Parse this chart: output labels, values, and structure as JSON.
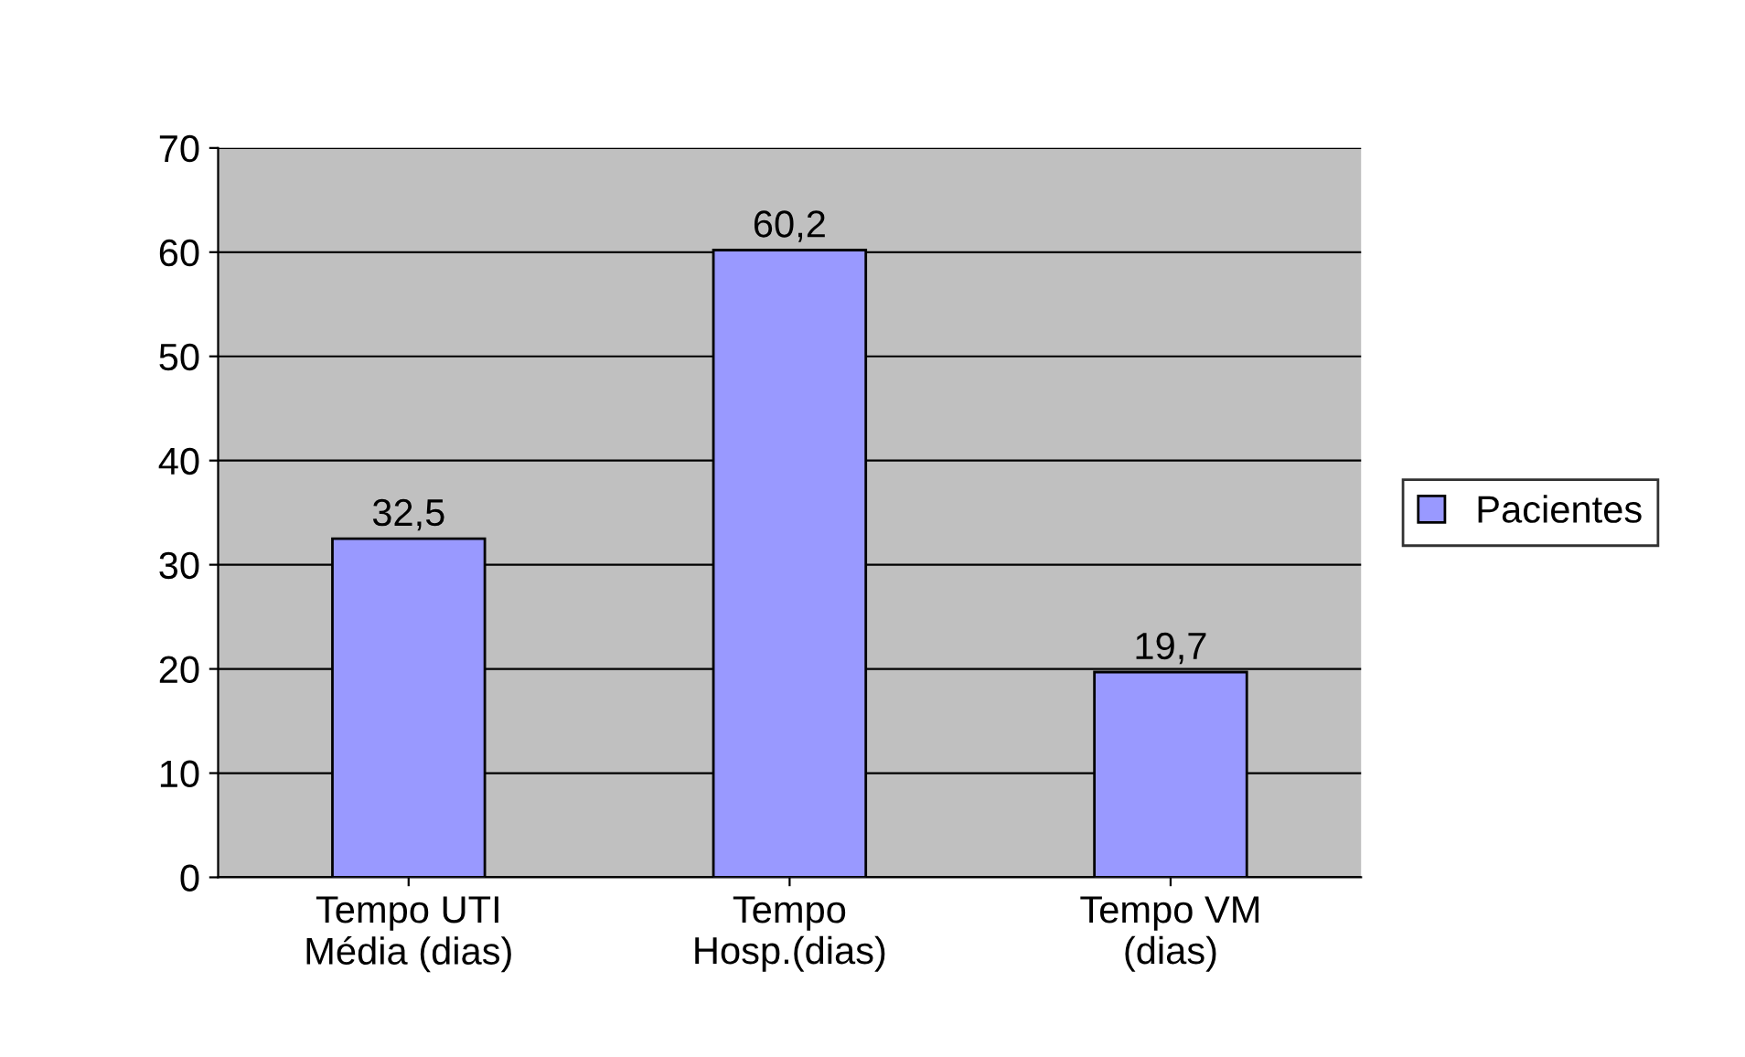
{
  "chart_data": {
    "type": "bar",
    "categories": [
      "Tempo UTI\nMédia (dias)",
      "Tempo\nHosp.(dias)",
      "Tempo VM\n(dias)"
    ],
    "series": [
      {
        "name": "Pacientes",
        "color": "#9999ff",
        "values": [
          32.5,
          60.2,
          19.7
        ],
        "value_labels": [
          "32,5",
          "60,2",
          "19,7"
        ]
      }
    ],
    "ylim": [
      0,
      70
    ],
    "yticks": [
      0,
      10,
      20,
      30,
      40,
      50,
      60,
      70
    ],
    "grid": "y",
    "legend": "right"
  }
}
